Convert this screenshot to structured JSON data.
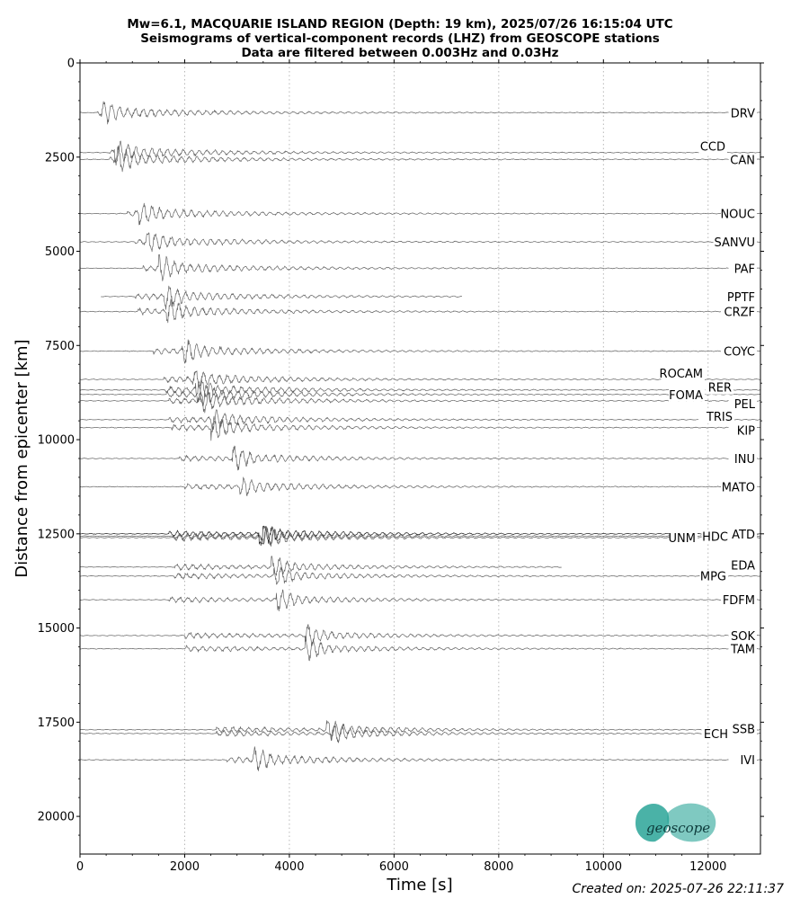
{
  "chart_data": {
    "type": "line",
    "title_lines": [
      "Mw=6.1, MACQUARIE ISLAND REGION (Depth: 19 km), 2025/07/26 16:15:04 UTC",
      "Seismograms of vertical-component records (LHZ) from GEOSCOPE stations",
      "Data are filtered between 0.003Hz and 0.03Hz"
    ],
    "xlabel": "Time [s]",
    "ylabel": "Distance from epicenter [km]",
    "xlim": [
      0,
      13000
    ],
    "ylim": [
      21000,
      0
    ],
    "xticks": [
      0,
      2000,
      4000,
      6000,
      8000,
      10000,
      12000
    ],
    "yticks": [
      0,
      2500,
      5000,
      7500,
      10000,
      12500,
      15000,
      17500,
      20000
    ],
    "grid": "vertical dotted",
    "stations": [
      {
        "name": "DRV",
        "distance": 1320,
        "onset": 330,
        "peak": 400,
        "end": 13000,
        "amp": 1.0,
        "label_dy": 0
      },
      {
        "name": "CCD",
        "distance": 2380,
        "onset": 560,
        "peak": 650,
        "end": 13000,
        "amp": 1.0,
        "label_dy": -7
      },
      {
        "name": "CAN",
        "distance": 2560,
        "onset": 560,
        "peak": 700,
        "end": 13000,
        "amp": 1.2,
        "label_dy": 0
      },
      {
        "name": "NOUC",
        "distance": 4000,
        "onset": 900,
        "peak": 1100,
        "end": 13000,
        "amp": 1.0,
        "label_dy": 0
      },
      {
        "name": "SANVU",
        "distance": 4750,
        "onset": 1050,
        "peak": 1250,
        "end": 13000,
        "amp": 0.9,
        "label_dy": 0
      },
      {
        "name": "PAF",
        "distance": 5450,
        "onset": 1200,
        "peak": 1500,
        "end": 13000,
        "amp": 1.2,
        "label_dy": 0
      },
      {
        "name": "PPTF",
        "distance": 6200,
        "onset": 1050,
        "peak": 1600,
        "end": 7300,
        "amp": 1.1,
        "label_dy": 0
      },
      {
        "name": "CRZF",
        "distance": 6600,
        "onset": 1100,
        "peak": 1650,
        "end": 13000,
        "amp": 1.1,
        "label_dy": 0
      },
      {
        "name": "COYC",
        "distance": 7650,
        "onset": 1400,
        "peak": 1950,
        "end": 13000,
        "amp": 1.1,
        "label_dy": 0
      },
      {
        "name": "ROCAM",
        "distance": 8400,
        "onset": 1600,
        "peak": 2150,
        "end": 13000,
        "amp": 0.9,
        "label_dy": -7
      },
      {
        "name": "RER",
        "distance": 8680,
        "onset": 1600,
        "peak": 2200,
        "end": 13000,
        "amp": 1.1,
        "label_dy": -3
      },
      {
        "name": "FOMA",
        "distance": 8800,
        "onset": 1650,
        "peak": 2250,
        "end": 13000,
        "amp": 1.1,
        "label_dy": 0
      },
      {
        "name": "PEL",
        "distance": 8970,
        "onset": 1700,
        "peak": 2300,
        "end": 13000,
        "amp": 1.1,
        "label_dy": 3
      },
      {
        "name": "TRIS",
        "distance": 9470,
        "onset": 1700,
        "peak": 2500,
        "end": 13000,
        "amp": 0.9,
        "label_dy": -4
      },
      {
        "name": "KIP",
        "distance": 9680,
        "onset": 1750,
        "peak": 2500,
        "end": 13000,
        "amp": 1.1,
        "label_dy": 3
      },
      {
        "name": "INU",
        "distance": 10500,
        "onset": 1900,
        "peak": 2900,
        "end": 13000,
        "amp": 1.2,
        "label_dy": 0
      },
      {
        "name": "MATO",
        "distance": 11250,
        "onset": 2000,
        "peak": 3050,
        "end": 13000,
        "amp": 1.0,
        "label_dy": 0
      },
      {
        "name": "ATD",
        "distance": 12500,
        "onset": 1700,
        "peak": 3400,
        "end": 13000,
        "amp": 1.3,
        "label_dy": 0
      },
      {
        "name": "HDC",
        "distance": 12560,
        "onset": 1800,
        "peak": 3450,
        "end": 13000,
        "amp": 1.0,
        "label_dy": 0
      },
      {
        "name": "UNM",
        "distance": 12600,
        "onset": 1800,
        "peak": 3500,
        "end": 13000,
        "amp": 1.0,
        "label_dy": 0
      },
      {
        "name": "EDA",
        "distance": 13380,
        "onset": 1800,
        "peak": 3650,
        "end": 9200,
        "amp": 1.0,
        "label_dy": -2
      },
      {
        "name": "MPG",
        "distance": 13620,
        "onset": 1800,
        "peak": 3700,
        "end": 13000,
        "amp": 1.0,
        "label_dy": 0
      },
      {
        "name": "FDFM",
        "distance": 14250,
        "onset": 1700,
        "peak": 3750,
        "end": 13000,
        "amp": 1.1,
        "label_dy": 0
      },
      {
        "name": "SOK",
        "distance": 15200,
        "onset": 2000,
        "peak": 4300,
        "end": 13000,
        "amp": 1.1,
        "label_dy": 0
      },
      {
        "name": "TAM",
        "distance": 15550,
        "onset": 2000,
        "peak": 4300,
        "end": 13000,
        "amp": 1.2,
        "label_dy": 0
      },
      {
        "name": "SSB",
        "distance": 17700,
        "onset": 2600,
        "peak": 4700,
        "end": 13000,
        "amp": 1.1,
        "label_dy": -1
      },
      {
        "name": "ECH",
        "distance": 17800,
        "onset": 2600,
        "peak": 4800,
        "end": 13000,
        "amp": 1.0,
        "label_dy": 0
      },
      {
        "name": "IVI",
        "distance": 18500,
        "onset": 2800,
        "peak": 3300,
        "end": 13000,
        "amp": 1.1,
        "label_dy": 0
      }
    ]
  },
  "logo": {
    "text": "geoscope",
    "color": "#2aa598"
  },
  "footer": {
    "created": "Created on: 2025-07-26 22:11:37"
  }
}
